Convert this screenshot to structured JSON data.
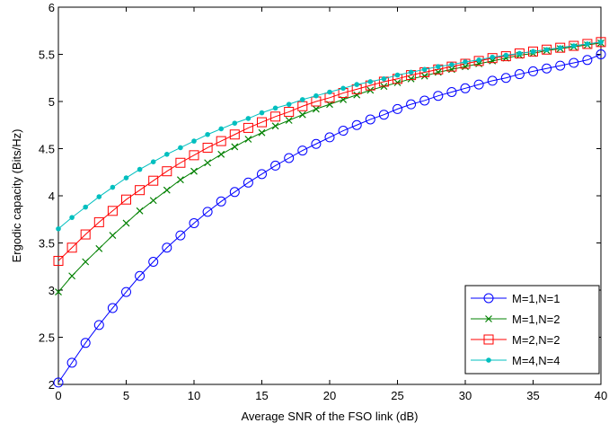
{
  "chart_data": {
    "type": "line",
    "title": "",
    "xlabel": "Average SNR of the FSO link (dB)",
    "ylabel": "Ergodic capacity (Bits/Hz)",
    "xlim": [
      0,
      40
    ],
    "ylim": [
      2,
      6
    ],
    "xticks": [
      0,
      5,
      10,
      15,
      20,
      25,
      30,
      35,
      40
    ],
    "yticks": [
      2,
      2.5,
      3,
      3.5,
      4,
      4.5,
      5,
      5.5,
      6
    ],
    "grid": false,
    "legend_position": "bottom-right",
    "x": [
      0,
      1,
      2,
      3,
      4,
      5,
      6,
      7,
      8,
      9,
      10,
      11,
      12,
      13,
      14,
      15,
      16,
      17,
      18,
      19,
      20,
      21,
      22,
      23,
      24,
      25,
      26,
      27,
      28,
      29,
      30,
      31,
      32,
      33,
      34,
      35,
      36,
      37,
      38,
      39,
      40
    ],
    "series": [
      {
        "name": "M=1,N=1",
        "color": "#0000ff",
        "marker": "circle",
        "values": [
          2.02,
          2.23,
          2.44,
          2.63,
          2.81,
          2.98,
          3.15,
          3.3,
          3.45,
          3.58,
          3.71,
          3.83,
          3.94,
          4.04,
          4.14,
          4.23,
          4.32,
          4.4,
          4.48,
          4.55,
          4.62,
          4.69,
          4.75,
          4.81,
          4.86,
          4.92,
          4.97,
          5.01,
          5.06,
          5.1,
          5.14,
          5.18,
          5.22,
          5.25,
          5.29,
          5.32,
          5.35,
          5.38,
          5.41,
          5.44,
          5.5
        ]
      },
      {
        "name": "M=1,N=2",
        "color": "#008000",
        "marker": "x",
        "values": [
          2.98,
          3.15,
          3.3,
          3.44,
          3.58,
          3.71,
          3.84,
          3.95,
          4.06,
          4.17,
          4.26,
          4.35,
          4.44,
          4.52,
          4.6,
          4.67,
          4.74,
          4.8,
          4.86,
          4.92,
          4.97,
          5.02,
          5.07,
          5.12,
          5.16,
          5.2,
          5.24,
          5.27,
          5.31,
          5.34,
          5.37,
          5.4,
          5.43,
          5.46,
          5.49,
          5.51,
          5.54,
          5.56,
          5.58,
          5.6,
          5.62
        ]
      },
      {
        "name": "M=2,N=2",
        "color": "#ff0000",
        "marker": "square",
        "values": [
          3.31,
          3.45,
          3.59,
          3.72,
          3.84,
          3.96,
          4.06,
          4.16,
          4.26,
          4.35,
          4.43,
          4.51,
          4.58,
          4.65,
          4.72,
          4.78,
          4.84,
          4.89,
          4.95,
          5.0,
          5.04,
          5.09,
          5.13,
          5.17,
          5.21,
          5.24,
          5.28,
          5.31,
          5.34,
          5.37,
          5.4,
          5.43,
          5.46,
          5.48,
          5.51,
          5.53,
          5.55,
          5.57,
          5.59,
          5.61,
          5.63
        ]
      },
      {
        "name": "M=4,N=4",
        "color": "#00bfbf",
        "marker": "dot",
        "values": [
          3.65,
          3.77,
          3.88,
          3.99,
          4.09,
          4.19,
          4.28,
          4.36,
          4.44,
          4.51,
          4.58,
          4.65,
          4.71,
          4.77,
          4.82,
          4.88,
          4.93,
          4.97,
          5.02,
          5.06,
          5.1,
          5.14,
          5.18,
          5.21,
          5.24,
          5.28,
          5.31,
          5.34,
          5.37,
          5.39,
          5.42,
          5.44,
          5.47,
          5.49,
          5.51,
          5.53,
          5.55,
          5.57,
          5.59,
          5.61,
          5.63
        ]
      }
    ]
  }
}
